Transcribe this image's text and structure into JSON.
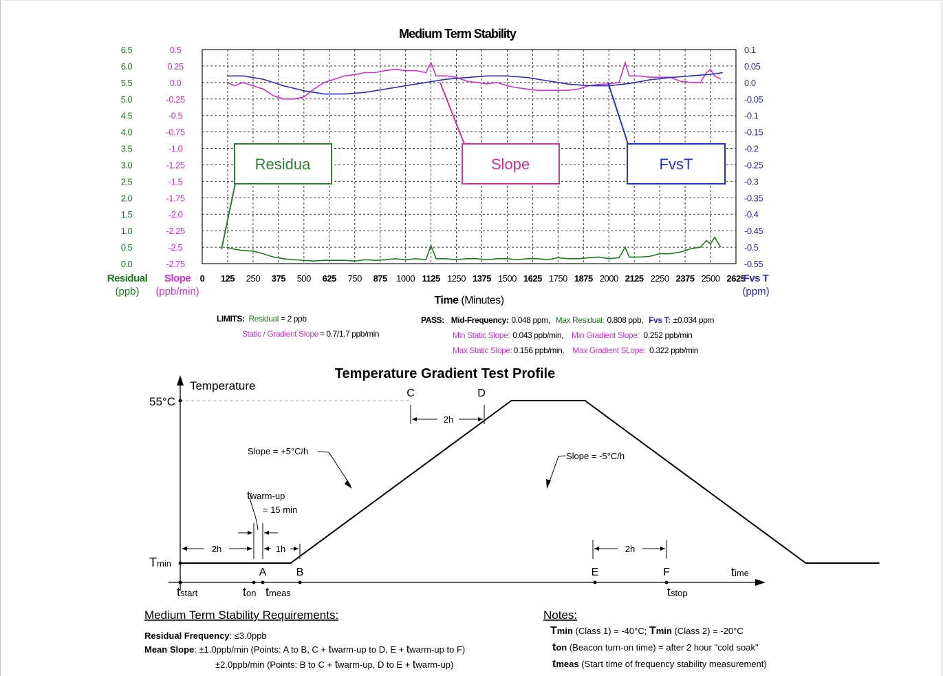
{
  "colors": {
    "residual": "#1a7a1a",
    "slope": "#cc33cc",
    "fvst": "#2b2bb5",
    "residual_box": "#2e7d32",
    "slope_box": "#cc3399",
    "fvst_box": "#1f2fd6",
    "grid": "#333333"
  },
  "chart_data": [
    {
      "type": "line",
      "title": "Medium Term Stability",
      "xlabel_bold": "Time",
      "xlabel_rest": "(Minutes)",
      "x_ticks": [
        "0",
        "125",
        "250",
        "375",
        "500",
        "625",
        "750",
        "875",
        "1000",
        "1125",
        "1250",
        "1375",
        "1500",
        "1625",
        "1750",
        "1875",
        "2000",
        "2125",
        "2250",
        "2375",
        "2500",
        "2625"
      ],
      "x_range": [
        0,
        2625
      ],
      "y_axes": {
        "residual": {
          "label": "Residual",
          "unit": "(ppb)",
          "ticks": [
            "6.5",
            "6.0",
            "5.5",
            "5.0",
            "4.5",
            "4.0",
            "3.5",
            "3.0",
            "2.5",
            "2.0",
            "1.5",
            "1.0",
            "0.5",
            "0.0"
          ],
          "range": [
            0.0,
            6.5
          ]
        },
        "slope": {
          "label": "Slope",
          "unit": "(ppb/min)",
          "ticks": [
            "0.5",
            "0.25",
            "0.0",
            "-0.25",
            "-0.5",
            "-0.75",
            "-1.0",
            "-1.25",
            "-1.5",
            "-1.75",
            "-2.0",
            "-2.25",
            "-2.5",
            "-2.75"
          ],
          "range": [
            -2.75,
            0.5
          ]
        },
        "fvst": {
          "label": "Fvs T",
          "unit": "(ppm)",
          "ticks": [
            "0.1",
            "0.05",
            "0.0",
            "-0.05",
            "-0.1",
            "-0.15",
            "-0.2",
            "-0.25",
            "-0.3",
            "-0.35",
            "-0.4",
            "-0.45",
            "-0.5",
            "-0.55"
          ],
          "range": [
            -0.55,
            0.1
          ]
        }
      },
      "grid": true,
      "series": [
        {
          "name": "Residua",
          "axis": "residual",
          "x": [
            120,
            150,
            200,
            250,
            300,
            350,
            400,
            450,
            500,
            550,
            600,
            650,
            700,
            750,
            800,
            850,
            900,
            950,
            1000,
            1050,
            1100,
            1125,
            1150,
            1200,
            1250,
            1300,
            1350,
            1400,
            1450,
            1500,
            1550,
            1600,
            1650,
            1700,
            1750,
            1800,
            1850,
            1900,
            1950,
            2000,
            2050,
            2080,
            2100,
            2150,
            2200,
            2250,
            2300,
            2350,
            2400,
            2450,
            2480,
            2500,
            2520,
            2550
          ],
          "y": [
            0.5,
            0.45,
            0.4,
            0.38,
            0.3,
            0.2,
            0.15,
            0.12,
            0.1,
            0.08,
            0.1,
            0.1,
            0.1,
            0.08,
            0.12,
            0.1,
            0.12,
            0.15,
            0.12,
            0.15,
            0.12,
            0.55,
            0.15,
            0.15,
            0.12,
            0.15,
            0.15,
            0.12,
            0.15,
            0.15,
            0.12,
            0.15,
            0.15,
            0.12,
            0.18,
            0.15,
            0.15,
            0.18,
            0.2,
            0.15,
            0.18,
            0.5,
            0.2,
            0.2,
            0.22,
            0.3,
            0.3,
            0.35,
            0.45,
            0.5,
            0.7,
            0.6,
            0.8,
            0.5
          ]
        },
        {
          "name": "Slope",
          "axis": "slope",
          "x": [
            120,
            160,
            200,
            250,
            300,
            350,
            400,
            450,
            500,
            550,
            600,
            650,
            700,
            750,
            800,
            850,
            900,
            950,
            1000,
            1050,
            1100,
            1125,
            1150,
            1200,
            1250,
            1300,
            1350,
            1400,
            1450,
            1500,
            1550,
            1600,
            1650,
            1700,
            1750,
            1800,
            1850,
            1900,
            1950,
            2000,
            2050,
            2080,
            2100,
            2150,
            2200,
            2250,
            2300,
            2350,
            2400,
            2450,
            2480,
            2500,
            2520,
            2550
          ],
          "y": [
            0.0,
            -0.05,
            0.0,
            -0.05,
            -0.1,
            -0.2,
            -0.25,
            -0.25,
            -0.22,
            -0.1,
            0.0,
            0.05,
            0.1,
            0.12,
            0.15,
            0.15,
            0.18,
            0.2,
            0.18,
            0.18,
            0.15,
            0.3,
            0.1,
            0.1,
            0.08,
            0.02,
            0.0,
            -0.02,
            0.0,
            -0.05,
            -0.08,
            -0.1,
            -0.12,
            -0.12,
            -0.12,
            -0.12,
            -0.1,
            -0.05,
            -0.03,
            -0.02,
            0.0,
            0.3,
            0.1,
            0.1,
            0.08,
            0.08,
            0.08,
            0.02,
            0.0,
            0.0,
            0.15,
            0.2,
            0.1,
            0.05
          ]
        },
        {
          "name": "FvsT",
          "axis": "fvst",
          "x": [
            120,
            200,
            300,
            400,
            500,
            600,
            700,
            800,
            900,
            1000,
            1100,
            1200,
            1300,
            1400,
            1500,
            1600,
            1700,
            1800,
            1900,
            2000,
            2100,
            2200,
            2300,
            2400,
            2500,
            2560
          ],
          "y": [
            0.02,
            0.02,
            0.01,
            -0.01,
            -0.025,
            -0.035,
            -0.035,
            -0.03,
            -0.02,
            -0.01,
            0.0,
            0.01,
            0.015,
            0.02,
            0.02,
            0.015,
            0.005,
            -0.005,
            -0.01,
            -0.01,
            -0.003,
            0.008,
            0.015,
            0.02,
            0.025,
            0.03
          ]
        }
      ],
      "callouts": [
        {
          "label": "Residua"
        },
        {
          "label": "Slope"
        },
        {
          "label": "FvsT"
        }
      ],
      "limits": {
        "title": "LIMITS:",
        "residual_label": "Residual",
        "residual_value": "= 2 ppb",
        "slope_label": "Static / Gradient Slope",
        "slope_value": "= 0.7/1.7 ppb/min"
      },
      "pass": {
        "title": "PASS:",
        "midfreq_label": "Mid-Frequency:",
        "midfreq_value": "0.048 ppm,",
        "maxres_label": "Max Residual:",
        "maxres_value": "0.808 ppb,",
        "fvst_label": "Fvs T:",
        "fvst_value": "±0.034 ppm",
        "minstatic_label": "Min Static Slope:",
        "minstatic_value": "0.043 ppb/min,",
        "mingrad_label": "Min Gradient Slope:",
        "mingrad_value": "0.252 ppb/min",
        "maxstatic_label": "Max Static Slope:",
        "maxstatic_value": "0.156 ppb/min,",
        "maxgrad_label": "Max Gradient SLope:",
        "maxgrad_value": "0.322 ppb/min"
      }
    },
    {
      "type": "line",
      "title": "Temperature Gradient Test Profile",
      "ylabel": "Temperature",
      "xlabel_main": "t",
      "xlabel_sub": "ime",
      "y_top_label": "55°C",
      "y_min_main": "T",
      "y_min_sub": "min",
      "points": {
        "A": "A",
        "B": "B",
        "C": "C",
        "D": "D",
        "E": "E",
        "F": "F"
      },
      "x_marks": [
        {
          "main": "t",
          "sub": "start"
        },
        {
          "main": "t",
          "sub": "on"
        },
        {
          "main": "t",
          "sub": "meas"
        },
        {
          "main": "t",
          "sub": "stop"
        }
      ],
      "x": [
        0,
        2,
        2.5,
        3,
        9,
        11,
        17,
        19
      ],
      "y": [
        -40,
        -40,
        -40,
        -40,
        55,
        55,
        -40,
        -40
      ],
      "dims": {
        "d_2h_start": "2h",
        "d_1h": "1h",
        "d_2h_top": "2h",
        "d_2h_end": "2h"
      },
      "annotations": {
        "slope_up": "Slope = +5°C/h",
        "slope_down": "Slope = -5°C/h",
        "twarm_main": "t",
        "twarm_sub": "warm-up",
        "twarm_val": "= 15 min"
      }
    }
  ],
  "requirements": {
    "title": "Medium Term Stability Requirements:",
    "residual_label": "Residual Frequency",
    "residual_value": ": ≤3.0ppb",
    "mean_label": "Mean Slope",
    "mean_line1_a": ":  ±1.0ppb/min (Points: A to B, C + ",
    "mean_line1_b": "to D, E + ",
    "mean_line1_c": "to F)",
    "mean_line2_a": "±2.0ppb/min (Points: B to C + ",
    "mean_line2_b": ", D to E + ",
    "mean_line2_c": ")",
    "t": "t",
    "warm": "warm-up"
  },
  "notes": {
    "title": "Notes:",
    "tmin_t": "T",
    "tmin_sub": "min",
    "tmin_1": " (Class 1) = -40°C; ",
    "tmin_2": " (Class 2) = -20°C",
    "ton_t": "t",
    "ton_sub": "on",
    "ton_text": " (Beacon turn-on time) =  after 2 hour \"cold soak\"",
    "tmeas_t": "t",
    "tmeas_sub": "meas",
    "tmeas_text": " (Start time of frequency stability measurement)"
  }
}
